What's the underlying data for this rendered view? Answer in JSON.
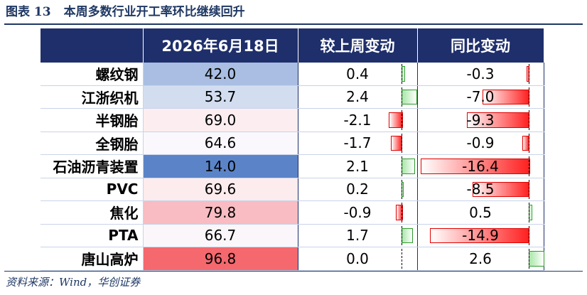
{
  "title": {
    "figure_no": "图表 13",
    "text": "本周多数行业开工率环比继续回升"
  },
  "table": {
    "headers": [
      "2026年6月18日",
      "较上周变动",
      "同比变动"
    ],
    "rows": [
      {
        "name": "螺纹钢",
        "rate": "42.0",
        "wow": "0.4",
        "yoy": "-0.3",
        "rate_color": "#A9BEE2"
      },
      {
        "name": "江浙织机",
        "rate": "53.7",
        "wow": "2.4",
        "yoy": "-7.0",
        "rate_color": "#D2DEF0"
      },
      {
        "name": "半钢胎",
        "rate": "69.0",
        "wow": "-2.1",
        "yoy": "-9.3",
        "rate_color": "#FCEEF0"
      },
      {
        "name": "全钢胎",
        "rate": "64.6",
        "wow": "-1.7",
        "yoy": "-0.9",
        "rate_color": "#FAF8FC"
      },
      {
        "name": "石油沥青装置",
        "rate": "14.0",
        "wow": "2.1",
        "yoy": "-16.4",
        "rate_color": "#5B84C8"
      },
      {
        "name": "PVC",
        "rate": "69.6",
        "wow": "0.2",
        "yoy": "-8.5",
        "rate_color": "#FCECEE"
      },
      {
        "name": "焦化",
        "rate": "79.8",
        "wow": "-0.9",
        "yoy": "0.5",
        "rate_color": "#F8BCC2"
      },
      {
        "name": "PTA",
        "rate": "66.7",
        "wow": "1.7",
        "yoy": "-14.9",
        "rate_color": "#FAF6FA"
      },
      {
        "name": "唐山高炉",
        "rate": "96.8",
        "wow": "0.0",
        "yoy": "2.6",
        "rate_color": "#F4686E"
      }
    ]
  },
  "colors": {
    "header_bg": "#1F2F6B",
    "positive_bar": "#2E9B2E",
    "negative_bar": "#FF2020",
    "title": "#1F3864"
  },
  "source": "资料来源：Wind，华创证券"
}
